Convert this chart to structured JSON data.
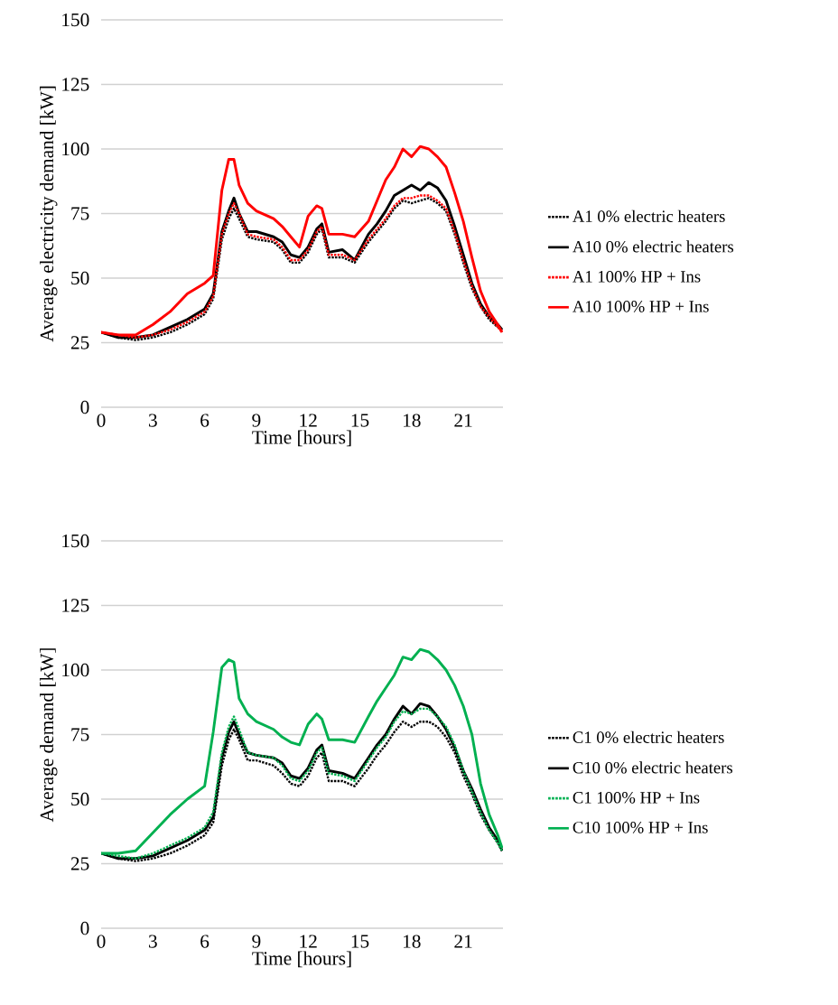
{
  "chart_data": [
    {
      "type": "line",
      "xlabel": "Time [hours]",
      "ylabel": "Average electricity demand [kW]",
      "xlim": [
        0,
        23.3
      ],
      "ylim": [
        0,
        150
      ],
      "xticks": [
        0,
        3,
        6,
        9,
        12,
        15,
        18,
        21
      ],
      "yticks": [
        0,
        25,
        50,
        75,
        100,
        125,
        150
      ],
      "grid": "y",
      "legend": "right",
      "marker": "none",
      "x": [
        0,
        1,
        2,
        3,
        4,
        5,
        6,
        6.5,
        7,
        7.4,
        7.7,
        8,
        8.5,
        9,
        10,
        10.5,
        11,
        11.5,
        12,
        12.5,
        12.8,
        13.2,
        14,
        14.7,
        15.5,
        16,
        16.5,
        17,
        17.5,
        18,
        18.5,
        19,
        19.5,
        20,
        20.5,
        21,
        21.5,
        22,
        22.5,
        23,
        23.25
      ],
      "series": [
        {
          "name": "A1 0% electric heaters",
          "color": "#000000",
          "line_style": "dotted",
          "values": [
            29,
            27,
            26,
            27,
            29,
            32,
            36,
            42,
            65,
            73,
            77,
            73,
            66,
            65,
            64,
            61,
            56,
            56,
            60,
            67,
            69,
            58,
            58,
            56,
            64,
            68,
            72,
            77,
            80,
            79,
            80,
            81,
            79,
            76,
            67,
            56,
            46,
            39,
            34,
            31,
            null
          ]
        },
        {
          "name": "A10 0% electric heaters",
          "color": "#000000",
          "line_style": "solid",
          "values": [
            29,
            27,
            27,
            28,
            31,
            34,
            38,
            44,
            68,
            76,
            81,
            75,
            68,
            68,
            66,
            64,
            59,
            58,
            62,
            69,
            71,
            60,
            61,
            57,
            67,
            71,
            76,
            82,
            84,
            86,
            84,
            87,
            85,
            80,
            70,
            59,
            48,
            40,
            35,
            32,
            30
          ]
        },
        {
          "name": "A1 100% HP + Ins",
          "color": "#ff0000",
          "line_style": "dotted",
          "values": [
            29,
            28,
            27,
            28,
            30,
            33,
            37,
            43,
            67,
            75,
            79,
            75,
            67,
            66,
            65,
            62,
            57,
            57,
            61,
            68,
            70,
            59,
            59,
            57,
            65,
            69,
            73,
            78,
            81,
            81,
            82,
            82,
            80,
            77,
            68,
            57,
            47,
            39,
            35,
            31,
            29
          ]
        },
        {
          "name": "A10 100% HP + Ins",
          "color": "#ff0000",
          "line_style": "solid",
          "values": [
            29,
            28,
            28,
            32,
            37,
            44,
            48,
            51,
            84,
            96,
            96,
            86,
            79,
            76,
            73,
            70,
            66,
            62,
            74,
            78,
            77,
            67,
            67,
            66,
            72,
            80,
            88,
            93,
            100,
            97,
            101,
            100,
            97,
            93,
            83,
            72,
            58,
            45,
            37,
            32,
            29
          ]
        }
      ]
    },
    {
      "type": "line",
      "xlabel": "Time [hours]",
      "ylabel": "Average demand [kW]",
      "xlim": [
        0,
        23.3
      ],
      "ylim": [
        0,
        150
      ],
      "xticks": [
        0,
        3,
        6,
        9,
        12,
        15,
        18,
        21
      ],
      "yticks": [
        0,
        25,
        50,
        75,
        100,
        125,
        150
      ],
      "grid": "y",
      "legend": "right",
      "marker": "none",
      "x": [
        0,
        1,
        2,
        3,
        4,
        5,
        6,
        6.5,
        7,
        7.4,
        7.7,
        8,
        8.5,
        9,
        10,
        10.5,
        11,
        11.5,
        12,
        12.5,
        12.8,
        13.2,
        14,
        14.7,
        15.5,
        16,
        16.5,
        17,
        17.5,
        18,
        18.5,
        19,
        19.5,
        20,
        20.5,
        21,
        21.5,
        22,
        22.5,
        23,
        23.25
      ],
      "series": [
        {
          "name": "C1 0% electric heaters",
          "color": "#000000",
          "line_style": "dotted",
          "values": [
            29,
            27,
            26,
            27,
            29,
            32,
            36,
            41,
            63,
            73,
            77,
            73,
            65,
            65,
            63,
            60,
            56,
            55,
            59,
            66,
            68,
            57,
            57,
            55,
            62,
            67,
            71,
            76,
            80,
            78,
            80,
            80,
            78,
            74,
            68,
            59,
            52,
            44,
            38,
            33,
            30
          ]
        },
        {
          "name": "C10 0% electric heaters",
          "color": "#000000",
          "line_style": "solid",
          "values": [
            29,
            27,
            27,
            28,
            31,
            34,
            38,
            43,
            66,
            76,
            80,
            75,
            68,
            67,
            66,
            64,
            59,
            58,
            62,
            69,
            71,
            61,
            60,
            58,
            66,
            71,
            75,
            81,
            86,
            83,
            87,
            86,
            82,
            77,
            70,
            61,
            54,
            46,
            39,
            34,
            30
          ]
        },
        {
          "name": "C1 100% HP + Ins",
          "color": "#00b050",
          "line_style": "dotted",
          "values": [
            29,
            28,
            27,
            29,
            32,
            35,
            39,
            45,
            68,
            78,
            82,
            77,
            68,
            67,
            66,
            63,
            58,
            57,
            61,
            68,
            70,
            60,
            59,
            57,
            65,
            70,
            74,
            80,
            84,
            83,
            85,
            85,
            82,
            78,
            71,
            61,
            53,
            45,
            38,
            33,
            30
          ]
        },
        {
          "name": "C10 100% HP + Ins",
          "color": "#00b050",
          "line_style": "solid",
          "values": [
            29,
            29,
            30,
            37,
            44,
            50,
            55,
            76,
            101,
            104,
            103,
            89,
            83,
            80,
            77,
            74,
            72,
            71,
            79,
            83,
            81,
            73,
            73,
            72,
            82,
            88,
            93,
            98,
            105,
            104,
            108,
            107,
            104,
            100,
            94,
            86,
            75,
            56,
            44,
            36,
            31
          ]
        }
      ]
    }
  ]
}
